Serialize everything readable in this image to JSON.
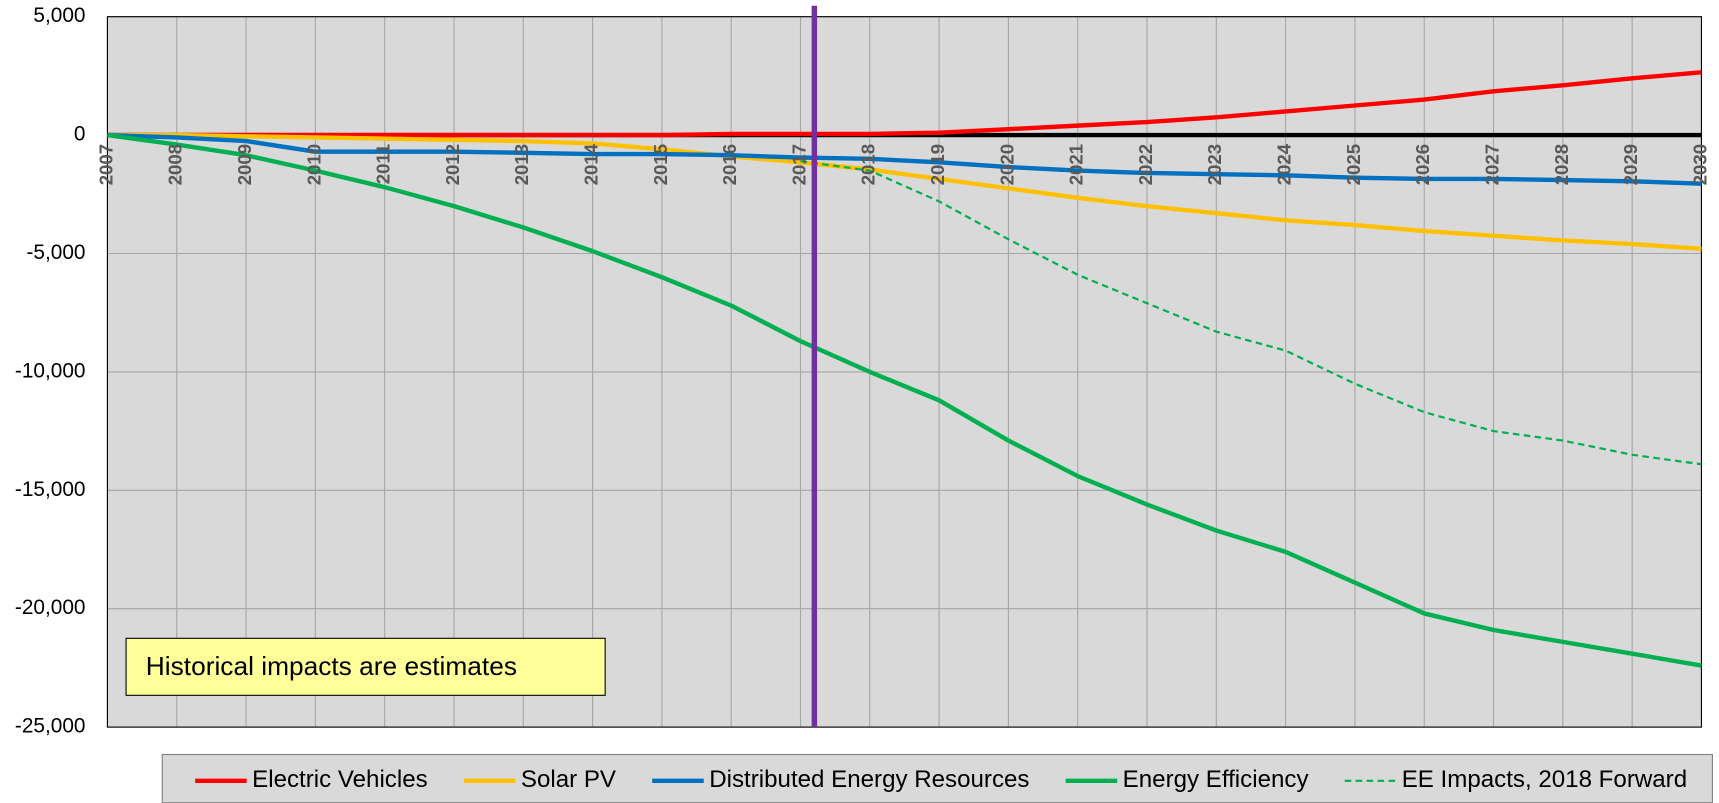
{
  "chart_data": {
    "type": "line",
    "categories": [
      "2007",
      "2008",
      "2009",
      "2010",
      "2011",
      "2012",
      "2013",
      "2014",
      "2015",
      "2016",
      "2017",
      "2018",
      "2019",
      "2020",
      "2021",
      "2022",
      "2023",
      "2024",
      "2025",
      "2026",
      "2027",
      "2028",
      "2029",
      "2030"
    ],
    "series": [
      {
        "name": "Electric Vehicles",
        "color": "#ff0000",
        "dashed": false,
        "values": [
          0,
          0,
          0,
          0,
          0,
          0,
          0,
          0,
          0,
          50,
          50,
          50,
          100,
          250,
          400,
          550,
          750,
          1000,
          1250,
          1500,
          1850,
          2100,
          2400,
          2650
        ]
      },
      {
        "name": "Solar PV",
        "color": "#ffc000",
        "dashed": false,
        "values": [
          0,
          0,
          -50,
          -100,
          -150,
          -200,
          -250,
          -350,
          -600,
          -900,
          -1150,
          -1450,
          -1850,
          -2250,
          -2650,
          -3000,
          -3300,
          -3600,
          -3800,
          -4050,
          -4250,
          -4450,
          -4600,
          -4800
        ]
      },
      {
        "name": "Distributed Energy Resources",
        "color": "#0070c0",
        "dashed": false,
        "values": [
          0,
          -100,
          -250,
          -700,
          -700,
          -700,
          -750,
          -800,
          -800,
          -850,
          -950,
          -1000,
          -1150,
          -1350,
          -1500,
          -1600,
          -1650,
          -1700,
          -1800,
          -1850,
          -1850,
          -1900,
          -1950,
          -2050
        ]
      },
      {
        "name": "Energy Efficiency",
        "color": "#00b050",
        "dashed": false,
        "values": [
          0,
          -400,
          -850,
          -1500,
          -2200,
          -3000,
          -3900,
          -4900,
          -6000,
          -7200,
          -8700,
          -10000,
          -11200,
          -12900,
          -14400,
          -15600,
          -16700,
          -17600,
          -18900,
          -20200,
          -20900,
          -21400,
          -21900,
          -22400
        ]
      },
      {
        "name": "EE Impacts, 2018 Forward",
        "color": "#00b050",
        "dashed": true,
        "values": [
          null,
          null,
          null,
          null,
          null,
          null,
          null,
          null,
          null,
          null,
          -1100,
          -1500,
          -2800,
          -4400,
          -5900,
          -7100,
          -8300,
          -9100,
          -10500,
          -11700,
          -12500,
          -12900,
          -13500,
          -13900
        ]
      }
    ],
    "ylim": [
      -25000,
      5000
    ],
    "yticks": [
      {
        "value": -25000,
        "label": "-25,000"
      },
      {
        "value": -20000,
        "label": "-20,000"
      },
      {
        "value": -15000,
        "label": "-15,000"
      },
      {
        "value": -10000,
        "label": "-10,000"
      },
      {
        "value": -5000,
        "label": "-5,000"
      },
      0,
      {
        "value": 5000,
        "label": "5,000"
      }
    ],
    "grid": true,
    "vline_x": 2017.2,
    "vline_color": "#7030a0",
    "annotation": "Historical impacts are estimates",
    "legend": "bottom"
  }
}
